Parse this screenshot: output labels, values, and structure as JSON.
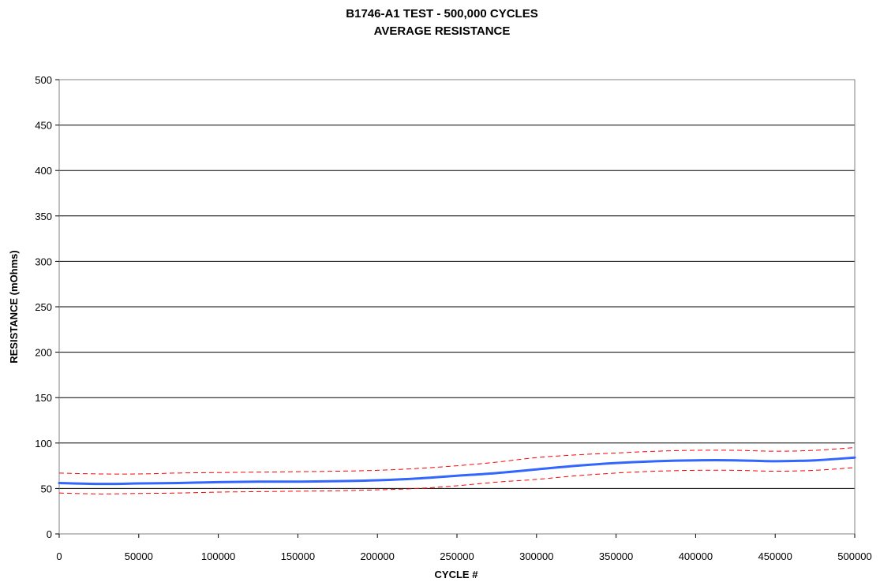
{
  "chart_data": {
    "type": "line",
    "title_lines": [
      "B1746-A1 TEST - 500,000 CYCLES",
      "AVERAGE RESISTANCE"
    ],
    "xlabel": "CYCLE #",
    "ylabel": "RESISTANCE (mOhms)",
    "xlim": [
      0,
      500000
    ],
    "ylim": [
      0,
      500
    ],
    "x_ticks": [
      0,
      50000,
      100000,
      150000,
      200000,
      250000,
      300000,
      350000,
      400000,
      450000,
      500000
    ],
    "y_ticks": [
      0,
      50,
      100,
      150,
      200,
      250,
      300,
      350,
      400,
      450,
      500
    ],
    "grid": "horizontal",
    "legend": "none",
    "x": [
      0,
      25000,
      50000,
      75000,
      100000,
      125000,
      150000,
      175000,
      200000,
      225000,
      250000,
      275000,
      300000,
      325000,
      350000,
      375000,
      400000,
      425000,
      450000,
      475000,
      500000
    ],
    "series": [
      {
        "style": "solid",
        "color": "#3366ff",
        "values": [
          56,
          55,
          55.5,
          56,
          57,
          57.5,
          57.5,
          58,
          59,
          61,
          64,
          67,
          71,
          75,
          78,
          80,
          81,
          81,
          80,
          81,
          84
        ]
      },
      {
        "style": "dashed",
        "color": "#ff0000",
        "values": [
          67,
          66,
          66,
          67,
          67.5,
          68,
          68.5,
          69,
          70,
          72,
          75,
          79,
          84,
          87,
          89,
          91,
          92,
          92,
          91,
          92,
          95
        ]
      },
      {
        "style": "dashed",
        "color": "#ff0000",
        "values": [
          45,
          44,
          44.5,
          45,
          46,
          46.5,
          47,
          47.5,
          48.5,
          50,
          53,
          57,
          60,
          64,
          67,
          69,
          70,
          70,
          69,
          70,
          73
        ]
      }
    ]
  }
}
